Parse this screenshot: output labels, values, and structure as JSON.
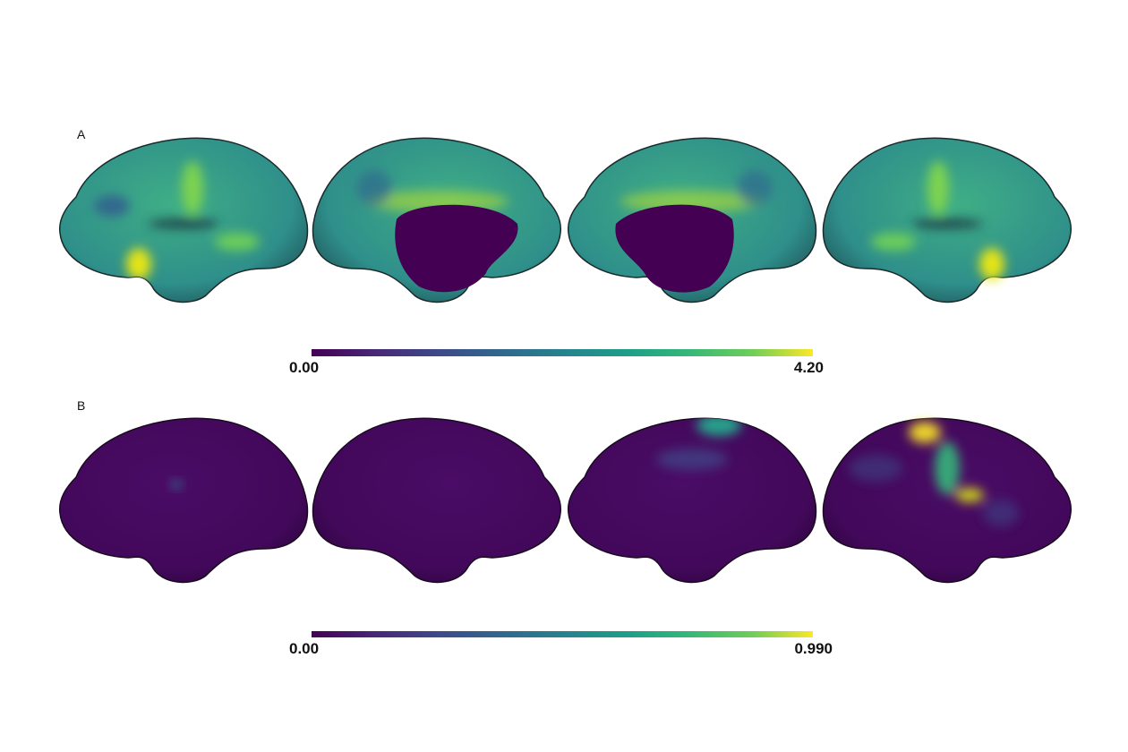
{
  "panels": [
    {
      "label": "A",
      "colorbar": {
        "min": "0.00",
        "max": "4.20"
      }
    },
    {
      "label": "B",
      "colorbar": {
        "min": "0.00",
        "max": "0.990"
      }
    }
  ]
}
